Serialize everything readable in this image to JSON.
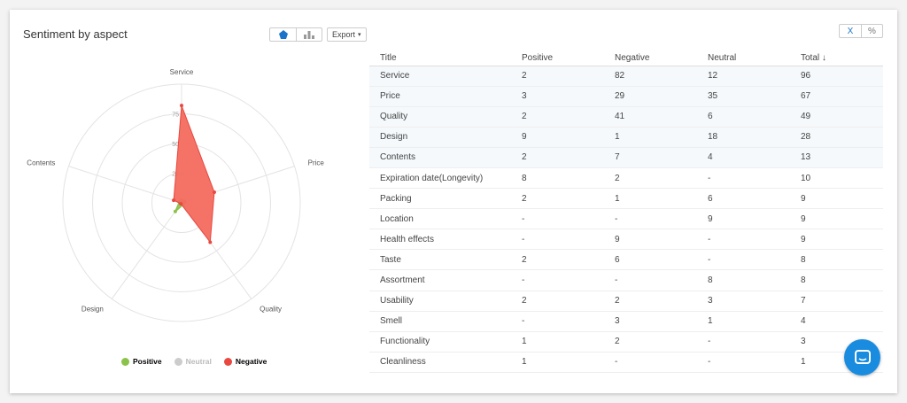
{
  "header": {
    "title": "Sentiment by aspect",
    "export_label": "Export",
    "unit_x": "X",
    "unit_pct": "%"
  },
  "legend": [
    {
      "name": "Positive",
      "color": "#8bc34a"
    },
    {
      "name": "Neutral",
      "color": "#cccccc"
    },
    {
      "name": "Negative",
      "color": "#e8483f"
    }
  ],
  "colors": {
    "accent": "#1a73c8",
    "negative_fill": "#f36a5e",
    "positive": "#8bc34a",
    "chat": "#1a8ce0"
  },
  "chart_data": {
    "type": "radar",
    "title": "Sentiment by aspect",
    "axes": [
      "Service",
      "Price",
      "Quality",
      "Design",
      "Contents"
    ],
    "rlim": [
      0,
      100
    ],
    "r_ticks": [
      0,
      25,
      50,
      75
    ],
    "series": [
      {
        "name": "Positive",
        "values": [
          2,
          3,
          2,
          9,
          2
        ],
        "color": "#8bc34a"
      },
      {
        "name": "Neutral",
        "values": [
          12,
          35,
          6,
          18,
          4
        ],
        "color": "#cccccc",
        "hidden": true
      },
      {
        "name": "Negative",
        "values": [
          82,
          29,
          41,
          1,
          7
        ],
        "color": "#e8483f"
      }
    ]
  },
  "table": {
    "headers": [
      "Title",
      "Positive",
      "Negative",
      "Neutral",
      "Total ↓"
    ],
    "rows": [
      [
        "Service",
        "2",
        "82",
        "12",
        "96"
      ],
      [
        "Price",
        "3",
        "29",
        "35",
        "67"
      ],
      [
        "Quality",
        "2",
        "41",
        "6",
        "49"
      ],
      [
        "Design",
        "9",
        "1",
        "18",
        "28"
      ],
      [
        "Contents",
        "2",
        "7",
        "4",
        "13"
      ],
      [
        "Expiration date(Longevity)",
        "8",
        "2",
        "-",
        "10"
      ],
      [
        "Packing",
        "2",
        "1",
        "6",
        "9"
      ],
      [
        "Location",
        "-",
        "-",
        "9",
        "9"
      ],
      [
        "Health effects",
        "-",
        "9",
        "-",
        "9"
      ],
      [
        "Taste",
        "2",
        "6",
        "-",
        "8"
      ],
      [
        "Assortment",
        "-",
        "-",
        "8",
        "8"
      ],
      [
        "Usability",
        "2",
        "2",
        "3",
        "7"
      ],
      [
        "Smell",
        "-",
        "3",
        "1",
        "4"
      ],
      [
        "Functionality",
        "1",
        "2",
        "-",
        "3"
      ],
      [
        "Cleanliness",
        "1",
        "-",
        "-",
        "1"
      ]
    ]
  }
}
